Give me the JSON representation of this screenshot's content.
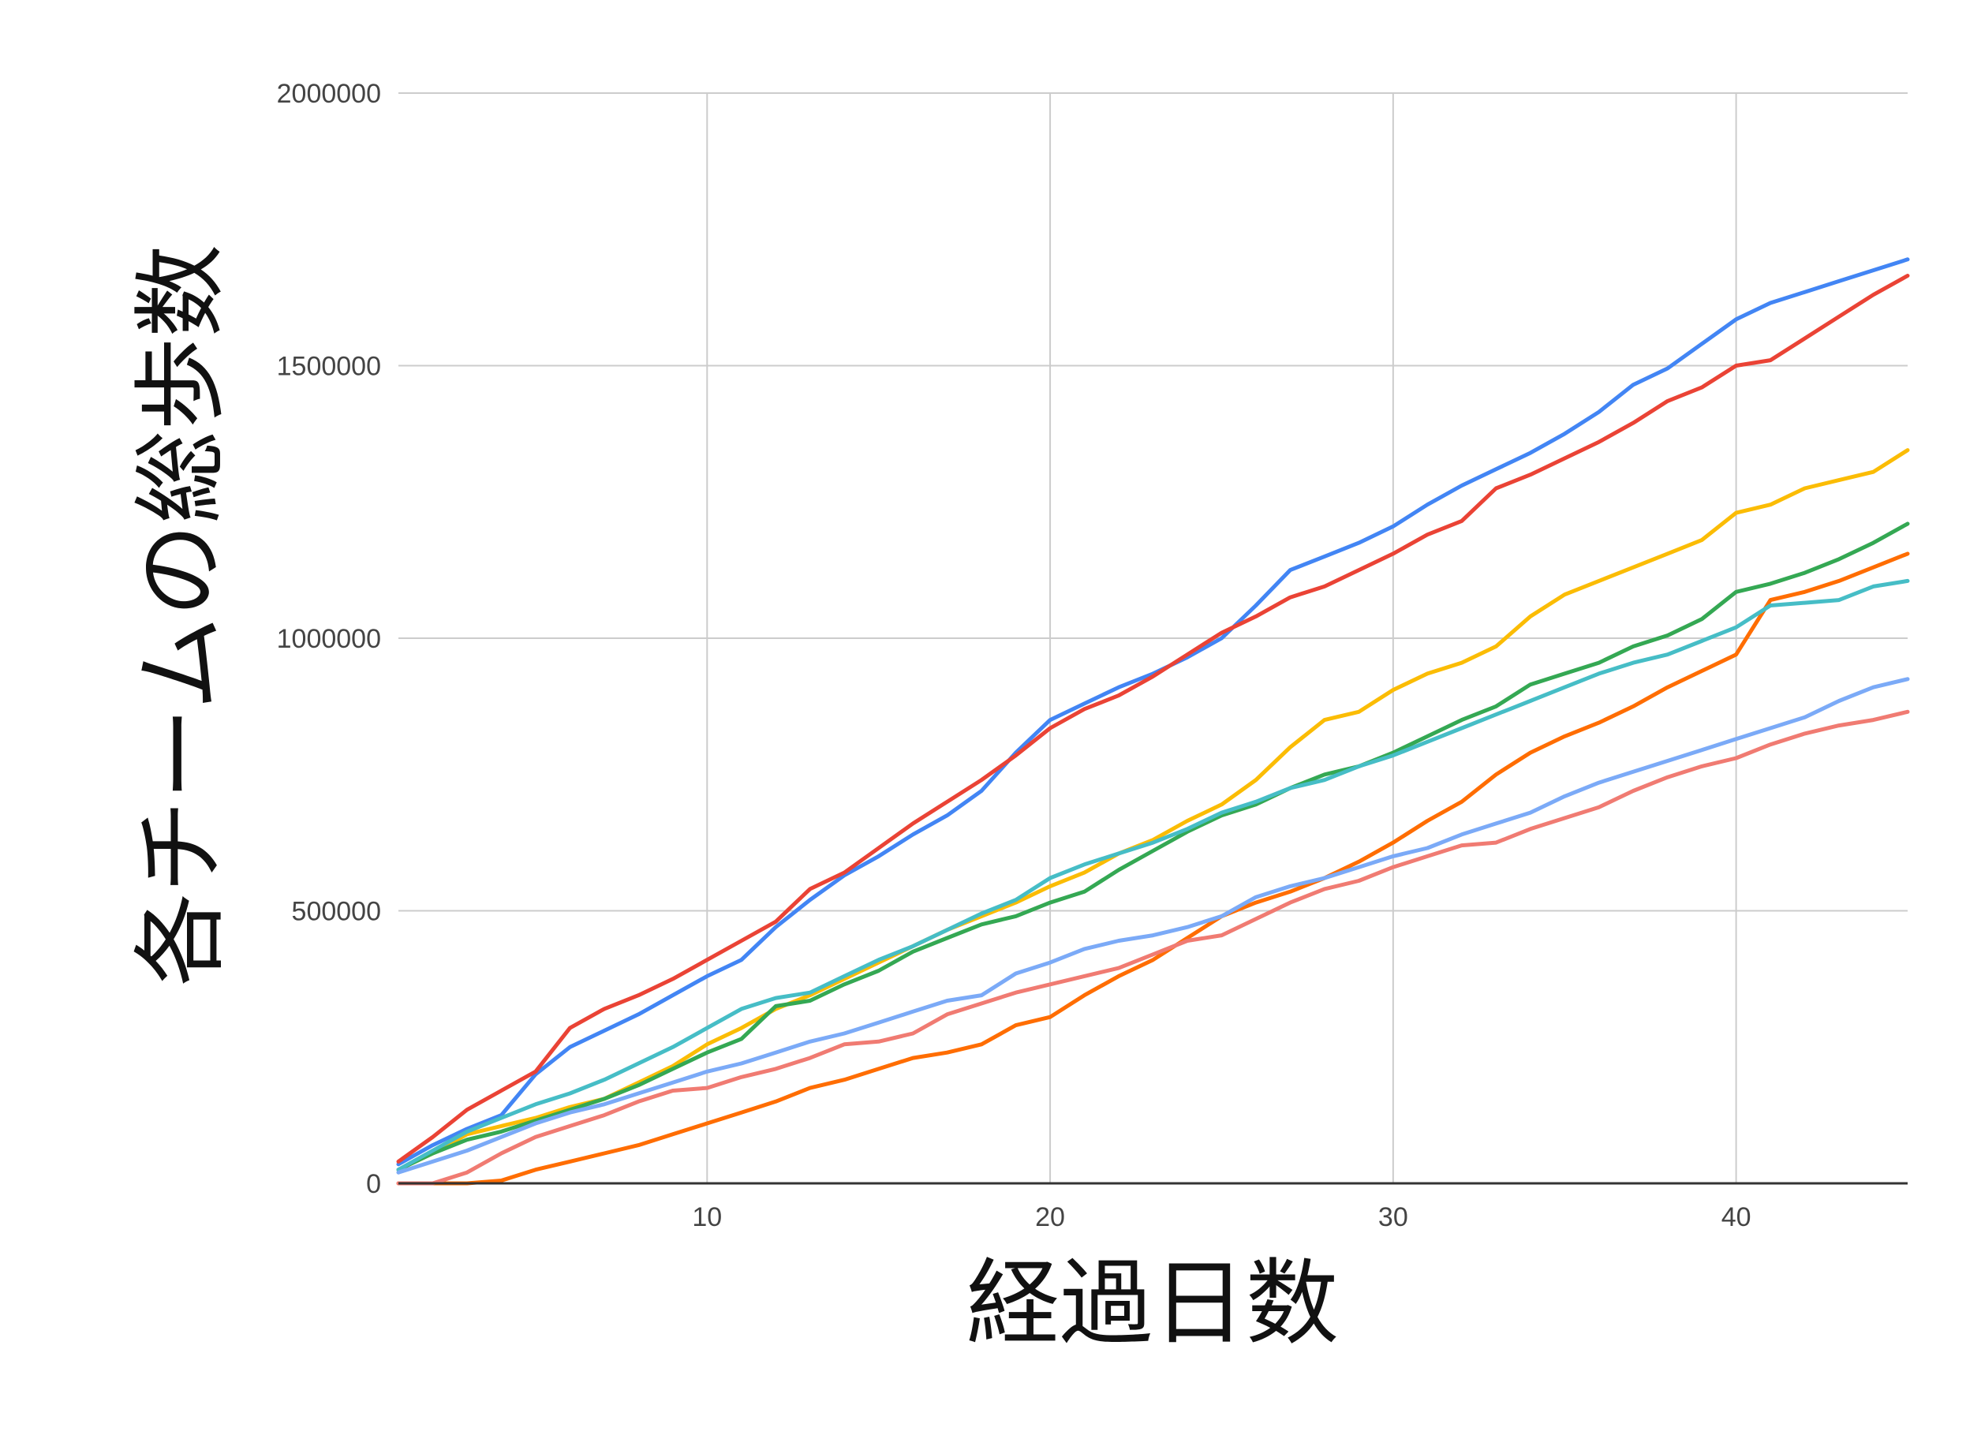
{
  "chart_data": {
    "type": "line",
    "title": "",
    "xlabel": "経過日数",
    "ylabel": "各チームの総歩数",
    "xlim": [
      1,
      45
    ],
    "ylim": [
      0,
      2000000
    ],
    "xticks": [
      10,
      20,
      30,
      40
    ],
    "yticks": [
      0,
      500000,
      1000000,
      1500000,
      2000000
    ],
    "grid": true,
    "legend": "none",
    "x": [
      1,
      2,
      3,
      4,
      5,
      6,
      7,
      8,
      9,
      10,
      11,
      12,
      13,
      14,
      15,
      16,
      17,
      18,
      19,
      20,
      21,
      22,
      23,
      24,
      25,
      26,
      27,
      28,
      29,
      30,
      31,
      32,
      33,
      34,
      35,
      36,
      37,
      38,
      39,
      40,
      41,
      42,
      43,
      44,
      45
    ],
    "series": [
      {
        "color": "#4285f4",
        "values": [
          35000,
          70000,
          100000,
          125000,
          200000,
          250000,
          280000,
          310000,
          345000,
          380000,
          410000,
          470000,
          520000,
          565000,
          600000,
          640000,
          675000,
          720000,
          790000,
          850000,
          880000,
          910000,
          935000,
          965000,
          1000000,
          1060000,
          1125000,
          1150000,
          1175000,
          1205000,
          1245000,
          1280000,
          1310000,
          1340000,
          1375000,
          1415000,
          1465000,
          1495000,
          1540000,
          1585000,
          1615000,
          1635000,
          1655000,
          1675000,
          1695000
        ]
      },
      {
        "color": "#ea4335",
        "values": [
          40000,
          85000,
          135000,
          170000,
          205000,
          285000,
          320000,
          345000,
          375000,
          410000,
          445000,
          480000,
          540000,
          570000,
          615000,
          660000,
          700000,
          740000,
          785000,
          835000,
          870000,
          895000,
          930000,
          970000,
          1010000,
          1040000,
          1075000,
          1095000,
          1125000,
          1155000,
          1190000,
          1215000,
          1275000,
          1300000,
          1330000,
          1360000,
          1395000,
          1435000,
          1460000,
          1500000,
          1510000,
          1550000,
          1590000,
          1630000,
          1665000
        ]
      },
      {
        "color": "#fbbc04",
        "values": [
          25000,
          55000,
          90000,
          105000,
          120000,
          140000,
          155000,
          185000,
          215000,
          255000,
          285000,
          320000,
          345000,
          375000,
          405000,
          435000,
          465000,
          490000,
          515000,
          545000,
          570000,
          605000,
          630000,
          665000,
          695000,
          740000,
          800000,
          850000,
          865000,
          905000,
          935000,
          955000,
          985000,
          1040000,
          1080000,
          1105000,
          1130000,
          1155000,
          1180000,
          1230000,
          1245000,
          1275000,
          1290000,
          1305000,
          1345000
        ]
      },
      {
        "color": "#34a853",
        "values": [
          25000,
          55000,
          80000,
          95000,
          115000,
          135000,
          155000,
          180000,
          210000,
          240000,
          265000,
          325000,
          335000,
          365000,
          390000,
          425000,
          450000,
          475000,
          490000,
          515000,
          535000,
          575000,
          610000,
          645000,
          675000,
          695000,
          725000,
          750000,
          765000,
          790000,
          820000,
          850000,
          875000,
          915000,
          935000,
          955000,
          985000,
          1005000,
          1035000,
          1085000,
          1100000,
          1120000,
          1145000,
          1175000,
          1210000
        ]
      },
      {
        "color": "#ff6d01",
        "values": [
          0,
          0,
          0,
          5000,
          25000,
          40000,
          55000,
          70000,
          90000,
          110000,
          130000,
          150000,
          175000,
          190000,
          210000,
          230000,
          240000,
          255000,
          290000,
          305000,
          345000,
          380000,
          410000,
          450000,
          490000,
          515000,
          535000,
          560000,
          590000,
          625000,
          665000,
          700000,
          750000,
          790000,
          820000,
          845000,
          875000,
          910000,
          940000,
          970000,
          1070000,
          1085000,
          1105000,
          1130000,
          1155000
        ]
      },
      {
        "color": "#46bdc6",
        "values": [
          25000,
          60000,
          95000,
          120000,
          145000,
          165000,
          190000,
          220000,
          250000,
          285000,
          320000,
          340000,
          350000,
          380000,
          410000,
          435000,
          465000,
          495000,
          520000,
          560000,
          585000,
          605000,
          625000,
          650000,
          680000,
          700000,
          725000,
          740000,
          765000,
          785000,
          810000,
          835000,
          860000,
          885000,
          910000,
          935000,
          955000,
          970000,
          995000,
          1020000,
          1060000,
          1065000,
          1070000,
          1095000,
          1105000
        ]
      },
      {
        "color": "#7baaf7",
        "values": [
          20000,
          40000,
          60000,
          85000,
          110000,
          130000,
          145000,
          165000,
          185000,
          205000,
          220000,
          240000,
          260000,
          275000,
          295000,
          315000,
          335000,
          345000,
          385000,
          405000,
          430000,
          445000,
          455000,
          470000,
          490000,
          525000,
          545000,
          560000,
          580000,
          600000,
          615000,
          640000,
          660000,
          680000,
          710000,
          735000,
          755000,
          775000,
          795000,
          815000,
          835000,
          855000,
          885000,
          910000,
          925000
        ]
      },
      {
        "color": "#f07b72",
        "values": [
          0,
          0,
          20000,
          55000,
          85000,
          105000,
          125000,
          150000,
          170000,
          175000,
          195000,
          210000,
          230000,
          255000,
          260000,
          275000,
          310000,
          330000,
          350000,
          365000,
          380000,
          395000,
          420000,
          445000,
          455000,
          485000,
          515000,
          540000,
          555000,
          580000,
          600000,
          620000,
          625000,
          650000,
          670000,
          690000,
          720000,
          745000,
          765000,
          780000,
          805000,
          825000,
          840000,
          850000,
          865000
        ]
      }
    ]
  }
}
